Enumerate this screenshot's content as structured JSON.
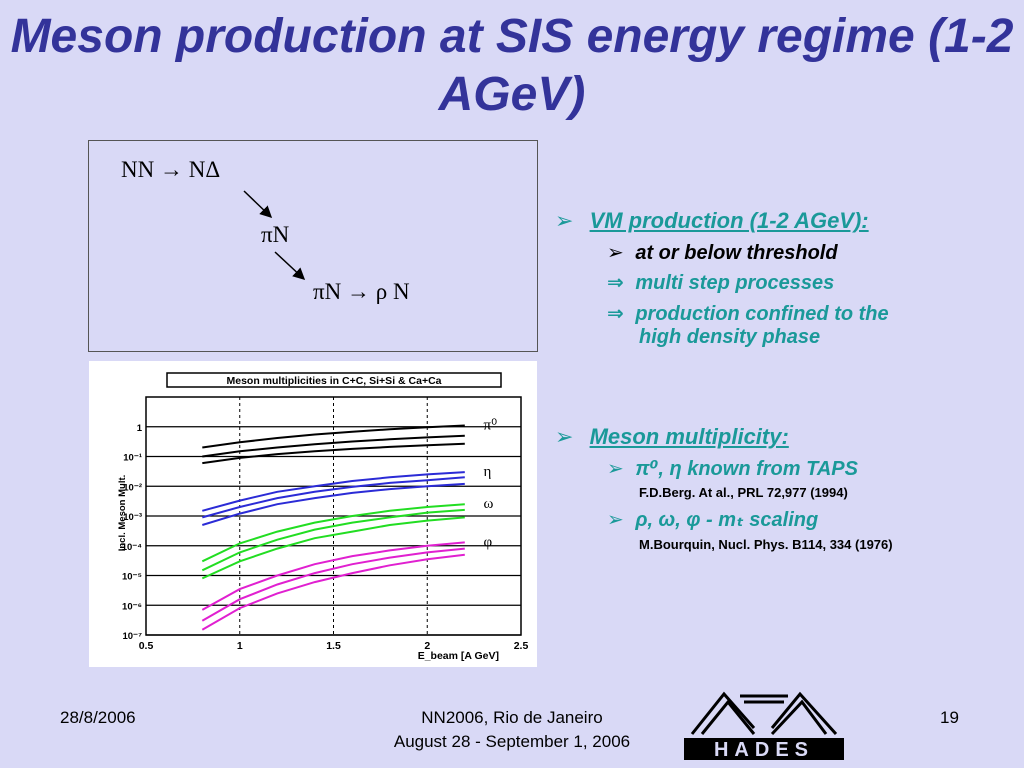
{
  "slide": {
    "title": "Meson production at SIS energy regime (1-2 AGeV)",
    "page_number": "19",
    "date": "28/8/2006",
    "event_line1": "NN2006, Rio de Janeiro",
    "event_line2": "August 28 - September 1, 2006",
    "logo_text": "HADES"
  },
  "reaction": {
    "line1": "NN → NΔ",
    "line2": "πN",
    "line3": "πN → ρ N"
  },
  "bullets": {
    "vm_production": "VM production (1-2 AGeV):",
    "at_or_below": "at or below threshold",
    "multi_step": "multi step processes",
    "confined_1": "production confined to the",
    "confined_2": "high density phase",
    "meson_mult": "Meson multiplicity:",
    "known_taps": "π⁰, η known from TAPS",
    "ref1": "F.D.Berg. At al., PRL 72,977 (1994)",
    "mt_scaling": "ρ, ω, φ - mₜ scaling",
    "ref2": "M.Bourquin, Nucl. Phys. B114, 334 (1976)",
    "arrow_marker": "➢",
    "implies_marker": "⇒"
  },
  "colors": {
    "title": "#33339a",
    "bullet_text": "#1a9999",
    "background": "#d9d9f6",
    "pi0": "#000000",
    "eta": "#2b2bd6",
    "omega": "#22dd22",
    "phi": "#e020d0"
  },
  "chart_data": {
    "type": "line",
    "title": "Meson multiplicities in C+C, Si+Si & Ca+Ca",
    "xlabel": "E_beam [A GeV]",
    "ylabel": "Incl. Meson Mult.",
    "xlim": [
      0.5,
      2.5
    ],
    "ylim": [
      1e-07,
      10
    ],
    "yscale": "log",
    "xticks": [
      "0.5",
      "1",
      "1.5",
      "2",
      "2.5"
    ],
    "yticks": [
      "1",
      "10⁻¹",
      "10⁻²",
      "10⁻³",
      "10⁻⁴",
      "10⁻⁵",
      "10⁻⁶",
      "10⁻⁷"
    ],
    "x": [
      0.8,
      1.0,
      1.2,
      1.4,
      1.6,
      1.8,
      2.0,
      2.2
    ],
    "series": [
      {
        "name": "π⁰",
        "color": "#000000",
        "curves": [
          [
            0.06,
            0.09,
            0.12,
            0.15,
            0.18,
            0.21,
            0.24,
            0.27
          ],
          [
            0.1,
            0.15,
            0.2,
            0.26,
            0.32,
            0.38,
            0.44,
            0.5
          ],
          [
            0.2,
            0.3,
            0.42,
            0.55,
            0.68,
            0.82,
            0.96,
            1.1
          ]
        ]
      },
      {
        "name": "η",
        "color": "#2b2bd6",
        "curves": [
          [
            0.0005,
            0.0012,
            0.0025,
            0.004,
            0.006,
            0.008,
            0.01,
            0.012
          ],
          [
            0.0009,
            0.002,
            0.004,
            0.0065,
            0.0095,
            0.013,
            0.016,
            0.02
          ],
          [
            0.0015,
            0.0033,
            0.0065,
            0.01,
            0.015,
            0.02,
            0.025,
            0.03
          ]
        ]
      },
      {
        "name": "ω",
        "color": "#22dd22",
        "curves": [
          [
            8e-06,
            3e-05,
            8e-05,
            0.00018,
            0.0003,
            0.0005,
            0.0007,
            0.0009
          ],
          [
            1.5e-05,
            6e-05,
            0.00016,
            0.00035,
            0.0006,
            0.0009,
            0.0013,
            0.0016
          ],
          [
            3e-05,
            0.00012,
            0.0003,
            0.0006,
            0.001,
            0.0015,
            0.002,
            0.0025
          ]
        ]
      },
      {
        "name": "φ",
        "color": "#e020d0",
        "curves": [
          [
            1.5e-07,
            8e-07,
            2.5e-06,
            6e-06,
            1.2e-05,
            2.2e-05,
            3.5e-05,
            5e-05
          ],
          [
            3e-07,
            1.6e-06,
            5e-06,
            1.2e-05,
            2.4e-05,
            4e-05,
            6e-05,
            8e-05
          ],
          [
            7e-07,
            3.5e-06,
            1e-05,
            2.4e-05,
            4.5e-05,
            7e-05,
            0.0001,
            0.00013
          ]
        ]
      }
    ]
  }
}
